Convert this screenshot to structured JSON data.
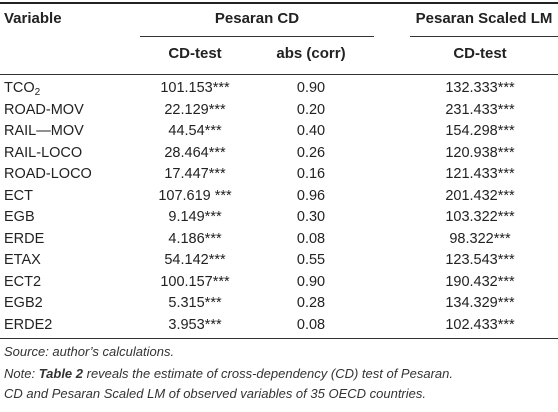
{
  "table": {
    "header_variable": "Variable",
    "group1": "Pesaran CD",
    "group2": "Pesaran Scaled LM",
    "sub_cd_test_1": "CD-test",
    "sub_abs_corr": "abs (corr)",
    "sub_cd_test_2": "CD-test",
    "rows": [
      {
        "var": "TCO",
        "var_sub": "2",
        "cd": "101.153***",
        "corr": "0.90",
        "lm": "132.333***"
      },
      {
        "var": "ROAD-MOV",
        "cd": "22.129***",
        "corr": "0.20",
        "lm": "231.433***"
      },
      {
        "var": "RAIL—MOV",
        "cd": "44.54***",
        "corr": "0.40",
        "lm": "154.298***"
      },
      {
        "var": "RAIL-LOCO",
        "cd": "28.464***",
        "corr": "0.26",
        "lm": "120.938***"
      },
      {
        "var": "ROAD-LOCO",
        "cd": "17.447***",
        "corr": "0.16",
        "lm": "121.433***"
      },
      {
        "var": "ECT",
        "cd": "107.619 ***",
        "corr": "0.96",
        "lm": "201.432***"
      },
      {
        "var": "EGB",
        "cd": "9.149***",
        "corr": "0.30",
        "lm": "103.322***"
      },
      {
        "var": "ERDE",
        "cd": "4.186***",
        "corr": "0.08",
        "lm": "98.322***"
      },
      {
        "var": "ETAX",
        "cd": "54.142***",
        "corr": "0.55",
        "lm": "123.543***"
      },
      {
        "var": "ECT2",
        "cd": "100.157***",
        "corr": "0.90",
        "lm": "190.432***"
      },
      {
        "var": "EGB2",
        "cd": "5.315***",
        "corr": "0.28",
        "lm": "134.329***"
      },
      {
        "var": "ERDE2",
        "cd": "3.953***",
        "corr": "0.08",
        "lm": "102.433***"
      }
    ]
  },
  "notes": {
    "source": "Source: author’s calculations.",
    "note_prefix": "Note: ",
    "note_bold": "Table 2",
    "note_line1_rest": " reveals the estimate of cross-dependency (CD) test of Pesaran.",
    "note_line2": "CD and Pesaran Scaled LM of observed variables of 35 OECD countries."
  }
}
